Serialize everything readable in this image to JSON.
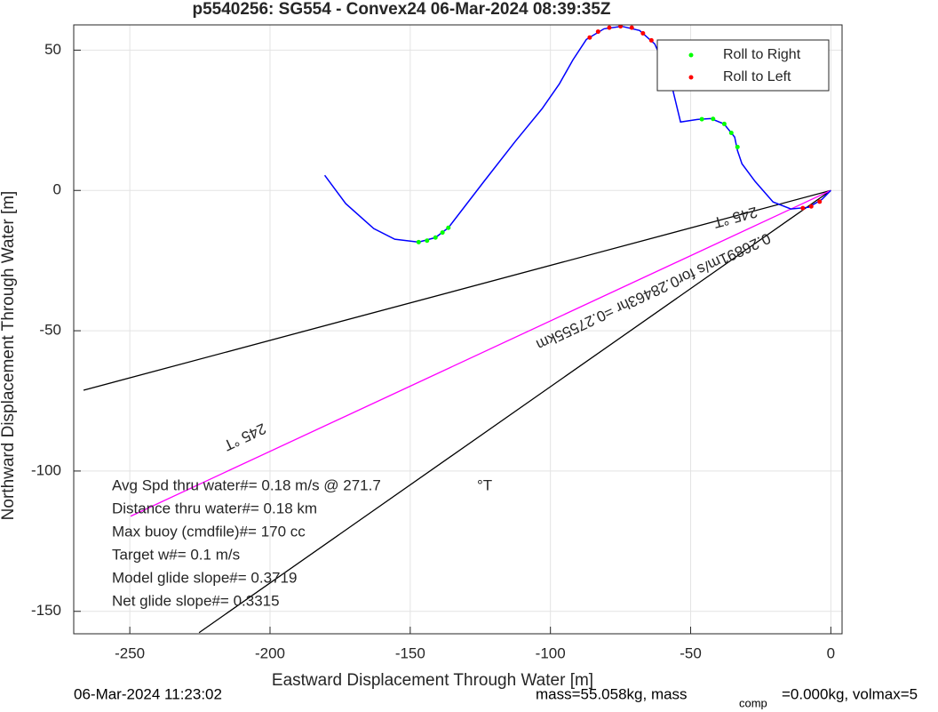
{
  "chart_data": {
    "type": "line",
    "title": "p5540256: SG554 - Convex24 06-Mar-2024 08:39:35Z",
    "xlabel": "Eastward Displacement Through Water [m]",
    "ylabel": "Northward Displacement Through Water [m]",
    "xlim": [
      -270,
      4
    ],
    "ylim": [
      -158,
      59
    ],
    "xticks": [
      -250,
      -200,
      -150,
      -100,
      -50,
      0
    ],
    "yticks": [
      -150,
      -100,
      -50,
      0,
      50
    ],
    "grid": true,
    "legend": "northeast",
    "trajectory": {
      "color": "#0000ff",
      "x": [
        -180.5,
        -173,
        -163,
        -155.5,
        -147,
        -141,
        -136.4,
        -123.7,
        -112.6,
        -103,
        -96.8,
        -92,
        -87.2,
        -80.9,
        -74.6,
        -68.2,
        -62.8,
        -59.3,
        -56.5,
        -53.6,
        -47.6,
        -42.8,
        -38.1,
        -34.3,
        -33.3,
        -31.7,
        -27,
        -20.6,
        -14.3,
        -7.9,
        -3.2,
        0
      ],
      "y": [
        5.4,
        -4.7,
        -13.6,
        -17.4,
        -18.4,
        -16.8,
        -13.3,
        3.2,
        17.4,
        29.1,
        38,
        46.5,
        53.8,
        57.6,
        58.5,
        57,
        52.2,
        44.3,
        36.4,
        24.4,
        25.3,
        25.6,
        23.7,
        19,
        14.2,
        9.5,
        3.2,
        -4.1,
        -6.6,
        -6,
        -3.2,
        0
      ]
    },
    "series": [
      {
        "name": "Roll to Right",
        "color": "#00ff00",
        "x": [
          -147,
          -144,
          -141,
          -138.5,
          -136.4,
          -46,
          -42,
          -38,
          -35.5,
          -33.3
        ],
        "y": [
          -18.4,
          -17.9,
          -16.8,
          -15,
          -13.3,
          25.4,
          25.5,
          23.7,
          20.5,
          15.5
        ]
      },
      {
        "name": "Roll to Left",
        "color": "#ff0000",
        "x": [
          -86,
          -83,
          -79,
          -75,
          -71,
          -67,
          -64,
          -10,
          -7,
          -4
        ],
        "y": [
          54.5,
          56.6,
          58,
          58.5,
          58,
          56,
          53.5,
          -6.3,
          -5.7,
          -4
        ]
      }
    ],
    "lines": [
      {
        "color": "#000000",
        "x": [
          0,
          -266.5
        ],
        "y": [
          0,
          -71.2
        ]
      },
      {
        "color": "#000000",
        "x": [
          0,
          -225.3
        ],
        "y": [
          0,
          -157.6
        ]
      },
      {
        "color": "#ff00ff",
        "x": [
          0,
          -249.7
        ],
        "y": [
          0,
          -116.1
        ]
      }
    ],
    "annotations": [
      "245 °T",
      "245 °T",
      "0.26891m/s for0.28463hr =0.27555km"
    ],
    "stats": [
      "Avg Spd thru water#=  0.18 m/s @ 271.7",
      "°T",
      "Distance thru water#=  0.18 km",
      "Max buoy (cmdfile)#= 170 cc",
      "Target w#= 0.1 m/s",
      "Model glide slope#= 0.3719",
      "Net glide slope#= 0.3315"
    ],
    "footer": [
      "06-Mar-2024 11:23:02",
      "mass=55.058kg, mass",
      "comp",
      "=0.000kg, volmax=5"
    ]
  }
}
